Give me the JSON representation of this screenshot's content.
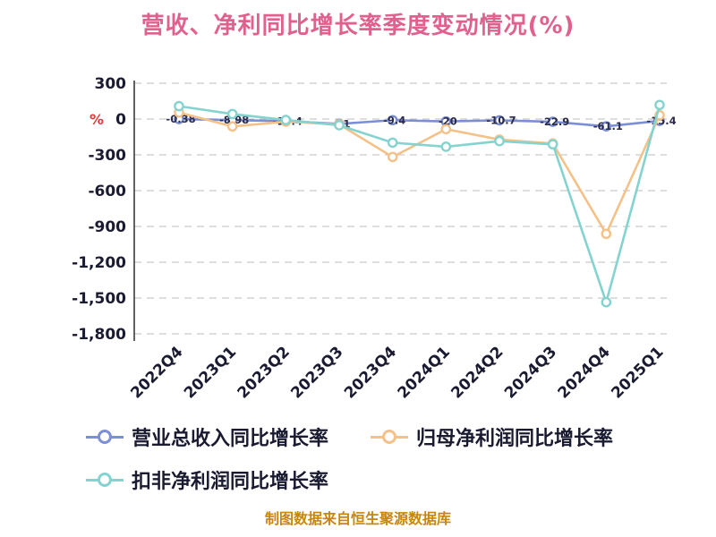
{
  "y_axis": {
    "unit": "%",
    "ticks": [
      300,
      0,
      -300,
      -600,
      -900,
      -1200,
      -1500,
      -1800
    ]
  },
  "source_note": "制图数据来自恒生聚源数据库",
  "colors": {
    "title": "#e0618e",
    "axis_text": "#1a1a30",
    "grid": "#c9c9c9",
    "unit": "#e03a3a",
    "source": "#c8860d",
    "series_blue": "#7b8ed6",
    "series_orange": "#f4c189",
    "series_teal": "#84d3cf"
  },
  "chart_data": {
    "type": "line",
    "title": "营收、净利同比增长率季度变动情况(%)",
    "categories": [
      "2022Q4",
      "2023Q1",
      "2023Q2",
      "2023Q3",
      "2023Q4",
      "2024Q1",
      "2024Q2",
      "2024Q3",
      "2024Q4",
      "2025Q1"
    ],
    "series": [
      {
        "name": "营业总收入同比增长率",
        "color": "#7b8ed6",
        "marker": "circle",
        "show_point_labels": true,
        "values": [
          -0.38,
          -8.98,
          -17.4,
          -41.0,
          -9.4,
          -20.0,
          -10.7,
          -22.9,
          -61.1,
          -15.4
        ]
      },
      {
        "name": "归母净利润同比增长率",
        "color": "#f4c189",
        "marker": "circle",
        "show_point_labels": false,
        "values": [
          55,
          -62,
          -22,
          -45,
          -318,
          -85,
          -172,
          -205,
          -962,
          32
        ]
      },
      {
        "name": "扣非净利润同比增长率",
        "color": "#84d3cf",
        "marker": "circle",
        "show_point_labels": false,
        "values": [
          108,
          42,
          -8,
          -52,
          -198,
          -232,
          -185,
          -212,
          -1535,
          118
        ]
      }
    ],
    "ylim": [
      -1800,
      300
    ],
    "yticks": [
      300,
      0,
      -300,
      -600,
      -900,
      -1200,
      -1500,
      -1800
    ],
    "xlabel": "",
    "ylabel": "%",
    "grid": {
      "horizontal": true,
      "style": "dashed"
    },
    "legend_position": "bottom-left"
  }
}
